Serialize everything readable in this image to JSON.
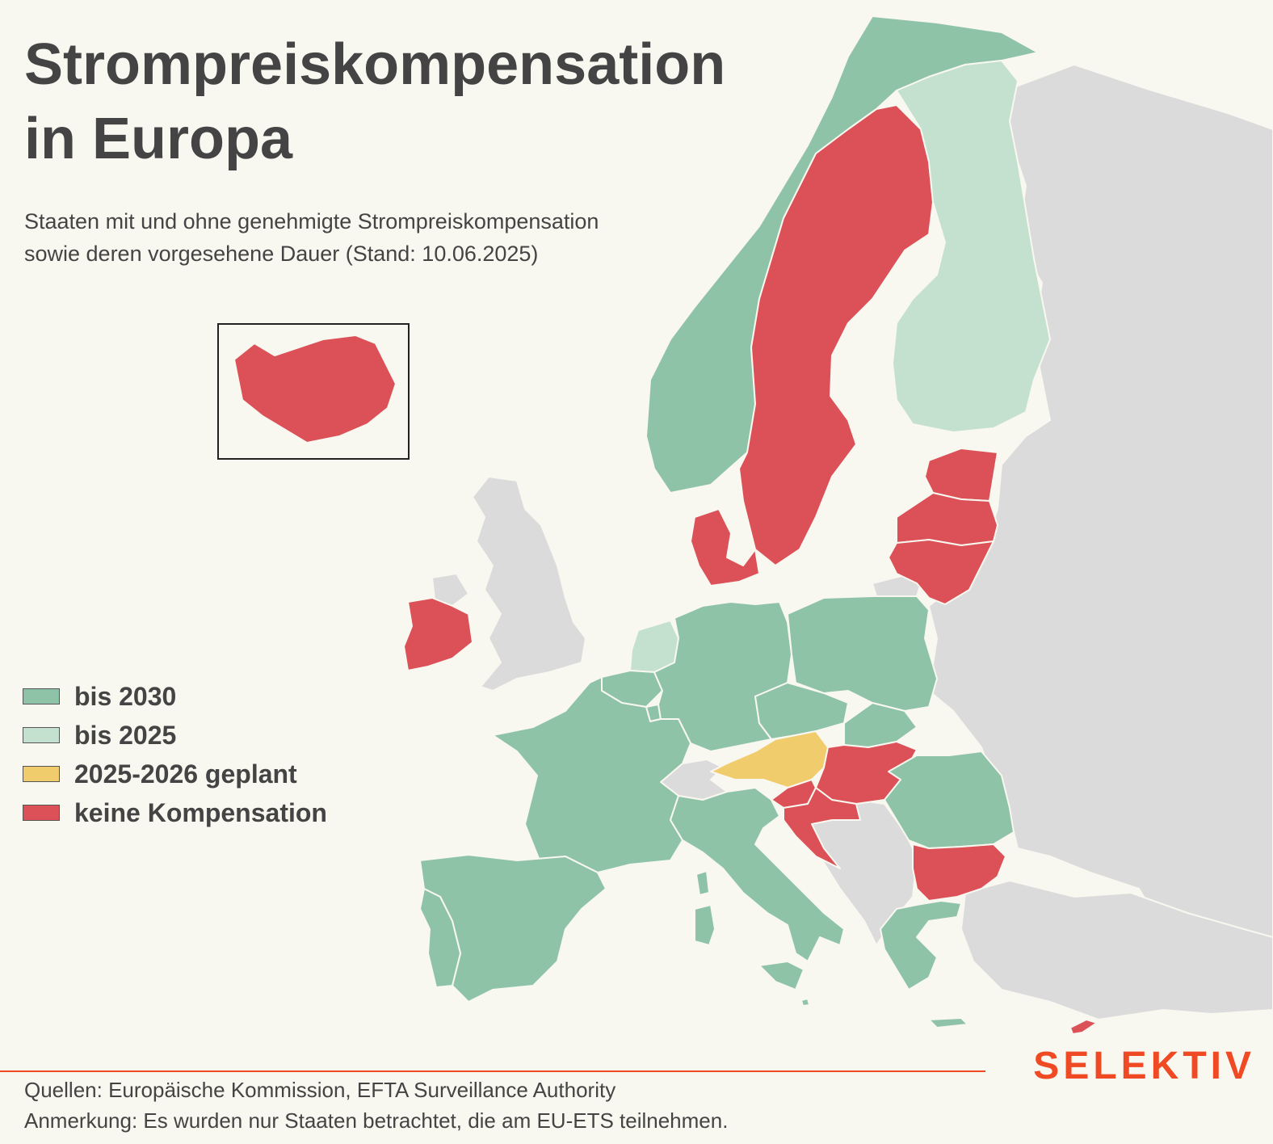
{
  "title": [
    "Strompreiskompensation",
    "in Europa"
  ],
  "subtitle": [
    "Staaten mit und ohne genehmigte Strompreiskompensation",
    "sowie deren vorgesehene Dauer (Stand: 10.06.2025)"
  ],
  "colors": {
    "bis_2030": "#8ec3a8",
    "bis_2025": "#c4e0cf",
    "geplant": "#f0cc6c",
    "keine": "#dc5157",
    "non_participant": "#dcdbdb",
    "accent": "#ef4a23"
  },
  "legend": [
    {
      "label": "bis 2030",
      "category": "bis_2030"
    },
    {
      "label": "bis 2025",
      "category": "bis_2025"
    },
    {
      "label": "2025-2026 geplant",
      "category": "geplant"
    },
    {
      "label": "keine Kompensation",
      "category": "keine"
    }
  ],
  "map_data": {
    "countries": [
      {
        "id": "NO",
        "name": "Norwegen",
        "category": "bis_2030"
      },
      {
        "id": "SE",
        "name": "Schweden",
        "category": "keine"
      },
      {
        "id": "FI",
        "name": "Finnland",
        "category": "bis_2025"
      },
      {
        "id": "IS",
        "name": "Island",
        "category": "keine"
      },
      {
        "id": "IE",
        "name": "Irland",
        "category": "keine"
      },
      {
        "id": "DK",
        "name": "Dänemark",
        "category": "keine"
      },
      {
        "id": "NL",
        "name": "Niederlande",
        "category": "bis_2025"
      },
      {
        "id": "BE",
        "name": "Belgien",
        "category": "bis_2030"
      },
      {
        "id": "LU",
        "name": "Luxemburg",
        "category": "bis_2030"
      },
      {
        "id": "DE",
        "name": "Deutschland",
        "category": "bis_2030"
      },
      {
        "id": "FR",
        "name": "Frankreich",
        "category": "bis_2030"
      },
      {
        "id": "ES",
        "name": "Spanien",
        "category": "bis_2030"
      },
      {
        "id": "PT",
        "name": "Portugal",
        "category": "bis_2030"
      },
      {
        "id": "IT",
        "name": "Italien",
        "category": "bis_2030"
      },
      {
        "id": "AT",
        "name": "Österreich",
        "category": "geplant"
      },
      {
        "id": "LI",
        "name": "Liechtenstein",
        "category": "geplant"
      },
      {
        "id": "PL",
        "name": "Polen",
        "category": "bis_2030"
      },
      {
        "id": "CZ",
        "name": "Tschechien",
        "category": "bis_2030"
      },
      {
        "id": "SK",
        "name": "Slowakei",
        "category": "bis_2030"
      },
      {
        "id": "HU",
        "name": "Ungarn",
        "category": "keine"
      },
      {
        "id": "SI",
        "name": "Slowenien",
        "category": "keine"
      },
      {
        "id": "HR",
        "name": "Kroatien",
        "category": "keine"
      },
      {
        "id": "RO",
        "name": "Rumänien",
        "category": "bis_2030"
      },
      {
        "id": "BG",
        "name": "Bulgarien",
        "category": "keine"
      },
      {
        "id": "GR",
        "name": "Griechenland",
        "category": "bis_2030"
      },
      {
        "id": "EE",
        "name": "Estland",
        "category": "keine"
      },
      {
        "id": "LV",
        "name": "Lettland",
        "category": "keine"
      },
      {
        "id": "LT",
        "name": "Litauen",
        "category": "keine"
      },
      {
        "id": "CY",
        "name": "Zypern",
        "category": "keine"
      },
      {
        "id": "MT",
        "name": "Malta",
        "category": "bis_2030"
      },
      {
        "id": "GB",
        "name": "Vereinigtes Königreich",
        "category": "non_participant"
      },
      {
        "id": "CH",
        "name": "Schweiz",
        "category": "non_participant"
      }
    ]
  },
  "logo": "SELEKTIV",
  "footer": [
    "Quellen: Europäische Kommission, EFTA Surveillance Authority",
    "Anmerkung: Es wurden nur Staaten betrachtet, die am EU-ETS teilnehmen."
  ]
}
